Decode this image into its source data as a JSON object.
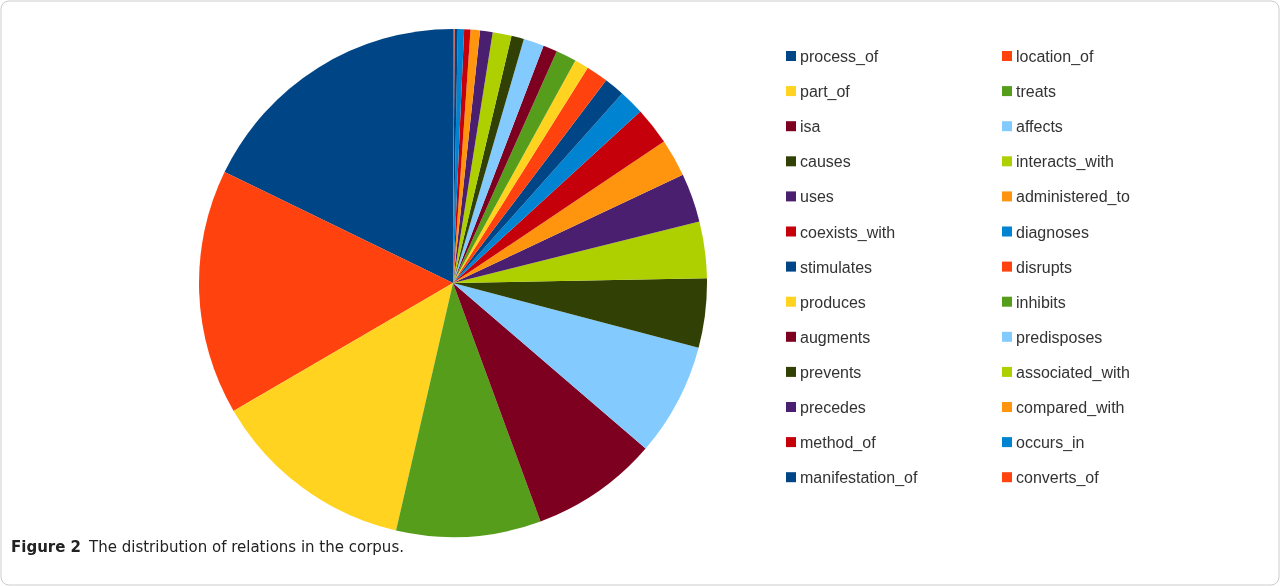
{
  "chart_data": {
    "type": "pie",
    "legend": "right",
    "categories": [
      "process_of",
      "location_of",
      "part_of",
      "treats",
      "isa",
      "affects",
      "causes",
      "interacts_with",
      "uses",
      "administered_to",
      "coexists_with",
      "diagnoses",
      "stimulates",
      "disrupts",
      "produces",
      "inhibits",
      "augments",
      "predisposes",
      "prevents",
      "associated_with",
      "precedes",
      "compared_with",
      "method_of",
      "occurs_in",
      "manifestation_of",
      "converts_of"
    ],
    "values": [
      17.8,
      15.6,
      13.0,
      9.2,
      8.1,
      7.2,
      4.4,
      3.6,
      3.1,
      2.4,
      2.4,
      1.6,
      1.3,
      1.4,
      0.9,
      1.3,
      0.9,
      1.3,
      0.8,
      1.2,
      0.8,
      0.6,
      0.4,
      0.4,
      0.2,
      0.1
    ],
    "colors": [
      "#004586",
      "#ff420e",
      "#ffd320",
      "#579d1c",
      "#7e0021",
      "#83caff",
      "#314004",
      "#aecf00",
      "#4b1f6f",
      "#ff950e",
      "#c5000b",
      "#0084d1",
      "#004586",
      "#ff420e",
      "#ffd320",
      "#579d1c",
      "#7e0021",
      "#83caff",
      "#314004",
      "#aecf00",
      "#4b1f6f",
      "#ff950e",
      "#c5000b",
      "#0084d1",
      "#004586",
      "#ff420e"
    ],
    "annotations": [
      "Figure 2",
      "The distribution of relations in the corpus."
    ]
  }
}
